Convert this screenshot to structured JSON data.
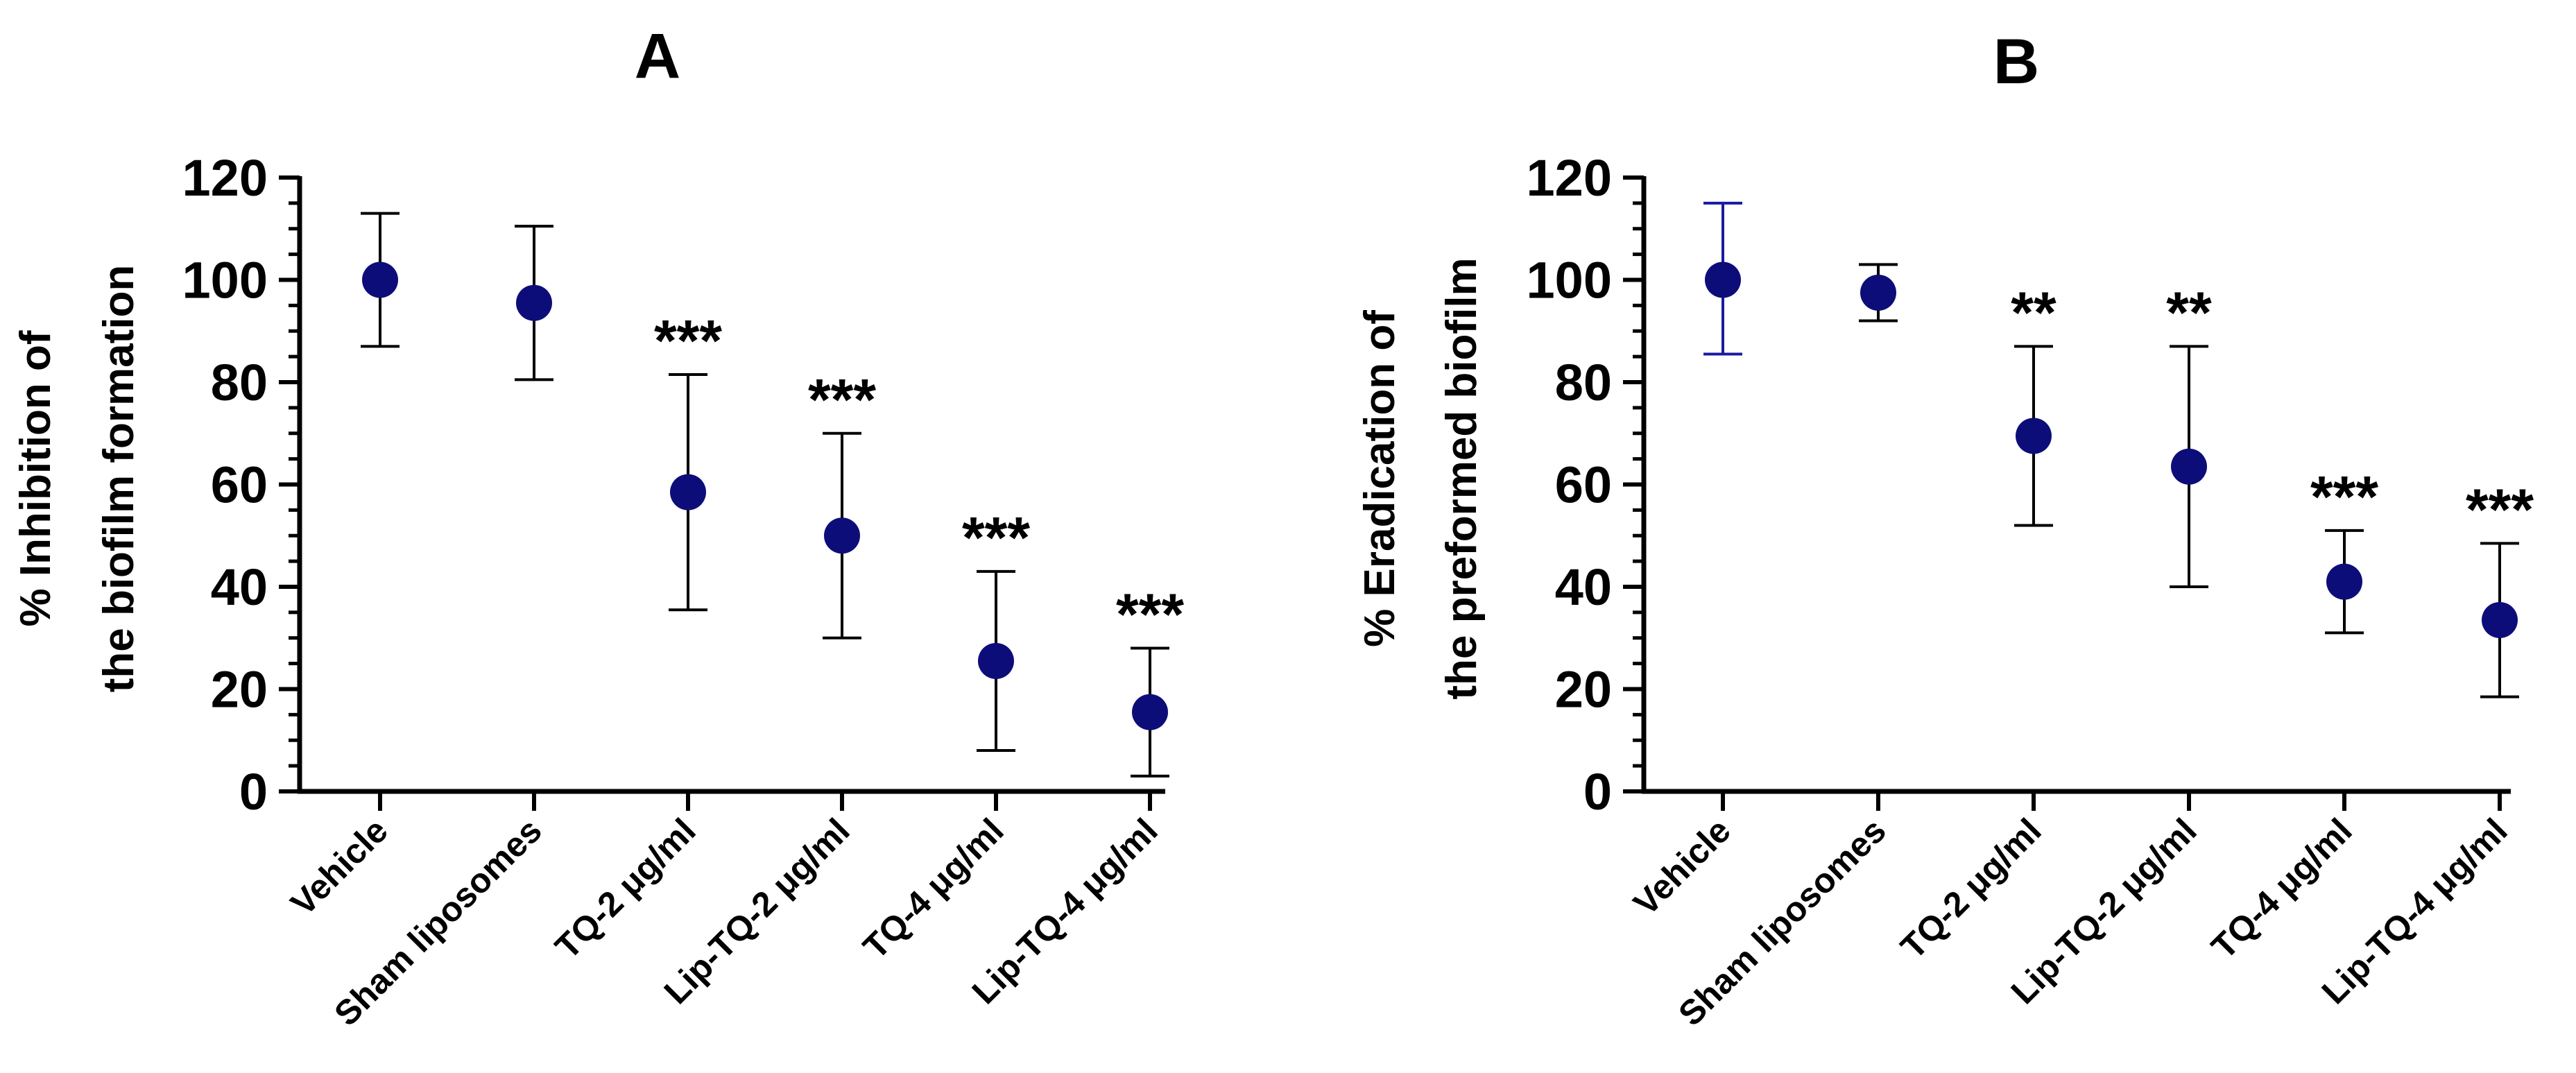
{
  "chart_data": [
    {
      "panel_label": "A",
      "type": "scatter",
      "ylabel_line1": "% Inhibition of",
      "ylabel_line2": "the biofilm formation",
      "ylim": [
        0,
        120
      ],
      "yticks": [
        0,
        20,
        40,
        60,
        80,
        100,
        120
      ],
      "minor_tick_step": 5,
      "categories": [
        "Vehicle",
        "Sham liposomes",
        "TQ-2 μg/ml",
        "Lip-TQ-2 μg/ml",
        "TQ-4 μg/ml",
        "Lip-TQ-4 μg/ml"
      ],
      "values": [
        100,
        95.5,
        58.5,
        50,
        25.5,
        15.5
      ],
      "error_low": [
        87,
        80.5,
        35.5,
        30,
        8,
        3
      ],
      "error_high": [
        113,
        110.5,
        81.5,
        70,
        43,
        28
      ],
      "significance": [
        "",
        "",
        "***",
        "***",
        "***",
        "***"
      ],
      "marker_color": "#0d0d7a",
      "errorbar_colors": [
        "#000000",
        "#000000",
        "#000000",
        "#000000",
        "#000000",
        "#000000"
      ]
    },
    {
      "panel_label": "B",
      "type": "scatter",
      "ylabel_line1": "% Eradication of",
      "ylabel_line2": "the preformed biofilm",
      "ylim": [
        0,
        120
      ],
      "yticks": [
        0,
        20,
        40,
        60,
        80,
        100,
        120
      ],
      "minor_tick_step": 5,
      "categories": [
        "Vehicle",
        "Sham liposomes",
        "TQ-2 μg/ml",
        "Lip-TQ-2 μg/ml",
        "TQ-4 μg/ml",
        "Lip-TQ-4 μg/ml"
      ],
      "values": [
        100,
        97.5,
        69.5,
        63.5,
        41,
        33.5
      ],
      "error_low": [
        85.5,
        92,
        52,
        40,
        31,
        18.5
      ],
      "error_high": [
        115,
        103,
        87,
        87,
        51,
        48.5
      ],
      "significance": [
        "",
        "",
        "**",
        "**",
        "***",
        "***"
      ],
      "marker_color": "#0d0d7a",
      "errorbar_colors": [
        "#1a1aa0",
        "#000000",
        "#000000",
        "#000000",
        "#000000",
        "#000000"
      ]
    }
  ]
}
